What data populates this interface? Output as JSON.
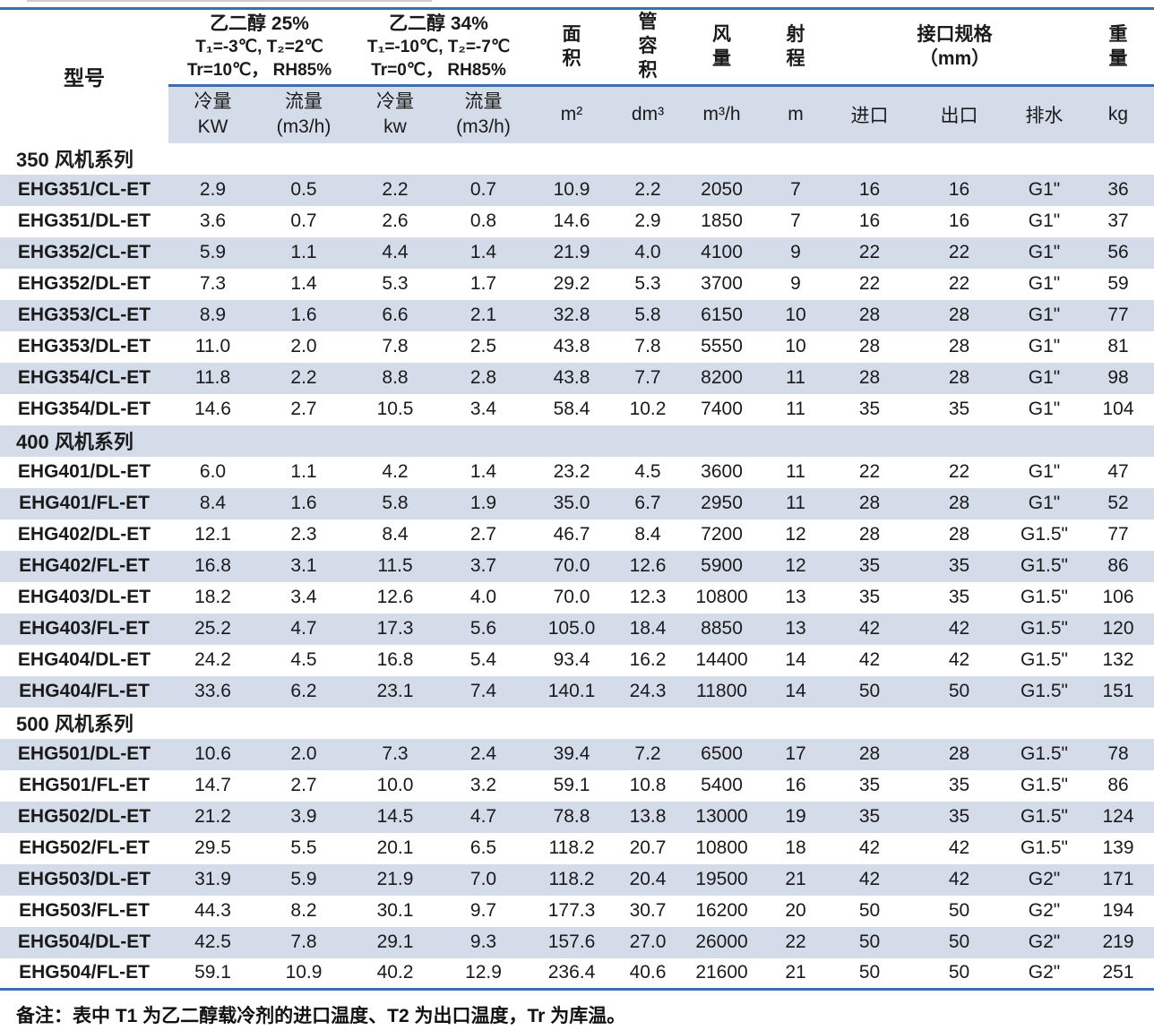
{
  "colors": {
    "accent": "#3e6cb0",
    "stripe": "#d4dcea"
  },
  "table": {
    "header": {
      "model_label": "型号",
      "group1": {
        "title": "乙二醇 25%",
        "line2": "T₁=-3℃, T₂=2℃",
        "line3": "Tr=10℃， RH85%"
      },
      "group2": {
        "title": "乙二醇 34%",
        "line2": "T₁=-10℃, T₂=-7℃",
        "line3": "Tr=0℃， RH85%"
      },
      "area": "面积",
      "tube_volume": "管容积",
      "air_flow": "风量",
      "throw": "射程",
      "connection": {
        "line1": "接口规格",
        "line2": "（mm）"
      },
      "weight": "重量",
      "units": {
        "cooling1": {
          "line1": "冷量",
          "line2": "KW"
        },
        "flow1": {
          "line1": "流量",
          "line2": "(m3/h)"
        },
        "cooling2": {
          "line1": "冷量",
          "line2": "kw"
        },
        "flow2": {
          "line1": "流量",
          "line2": "(m3/h)"
        },
        "area": "m²",
        "tube_volume": "dm³",
        "air_flow": "m³/h",
        "throw": "m",
        "inlet": "进口",
        "outlet": "出口",
        "drain": "排水",
        "weight": "kg"
      }
    },
    "rows": [
      {
        "type": "section",
        "label": "350 风机系列"
      },
      {
        "type": "data",
        "model": "EHG351/CL-ET",
        "values": [
          "2.9",
          "0.5",
          "2.2",
          "0.7",
          "10.9",
          "2.2",
          "2050",
          "7",
          "16",
          "16",
          "G1\"",
          "36"
        ]
      },
      {
        "type": "data",
        "model": "EHG351/DL-ET",
        "values": [
          "3.6",
          "0.7",
          "2.6",
          "0.8",
          "14.6",
          "2.9",
          "1850",
          "7",
          "16",
          "16",
          "G1\"",
          "37"
        ]
      },
      {
        "type": "data",
        "model": "EHG352/CL-ET",
        "values": [
          "5.9",
          "1.1",
          "4.4",
          "1.4",
          "21.9",
          "4.0",
          "4100",
          "9",
          "22",
          "22",
          "G1\"",
          "56"
        ]
      },
      {
        "type": "data",
        "model": "EHG352/DL-ET",
        "values": [
          "7.3",
          "1.4",
          "5.3",
          "1.7",
          "29.2",
          "5.3",
          "3700",
          "9",
          "22",
          "22",
          "G1\"",
          "59"
        ]
      },
      {
        "type": "data",
        "model": "EHG353/CL-ET",
        "values": [
          "8.9",
          "1.6",
          "6.6",
          "2.1",
          "32.8",
          "5.8",
          "6150",
          "10",
          "28",
          "28",
          "G1\"",
          "77"
        ]
      },
      {
        "type": "data",
        "model": "EHG353/DL-ET",
        "values": [
          "11.0",
          "2.0",
          "7.8",
          "2.5",
          "43.8",
          "7.8",
          "5550",
          "10",
          "28",
          "28",
          "G1\"",
          "81"
        ]
      },
      {
        "type": "data",
        "model": "EHG354/CL-ET",
        "values": [
          "11.8",
          "2.2",
          "8.8",
          "2.8",
          "43.8",
          "7.7",
          "8200",
          "11",
          "28",
          "28",
          "G1\"",
          "98"
        ]
      },
      {
        "type": "data",
        "model": "EHG354/DL-ET",
        "values": [
          "14.6",
          "2.7",
          "10.5",
          "3.4",
          "58.4",
          "10.2",
          "7400",
          "11",
          "35",
          "35",
          "G1\"",
          "104"
        ]
      },
      {
        "type": "section",
        "label": "400 风机系列"
      },
      {
        "type": "data",
        "model": "EHG401/DL-ET",
        "values": [
          "6.0",
          "1.1",
          "4.2",
          "1.4",
          "23.2",
          "4.5",
          "3600",
          "11",
          "22",
          "22",
          "G1\"",
          "47"
        ]
      },
      {
        "type": "data",
        "model": "EHG401/FL-ET",
        "values": [
          "8.4",
          "1.6",
          "5.8",
          "1.9",
          "35.0",
          "6.7",
          "2950",
          "11",
          "28",
          "28",
          "G1\"",
          "52"
        ]
      },
      {
        "type": "data",
        "model": "EHG402/DL-ET",
        "values": [
          "12.1",
          "2.3",
          "8.4",
          "2.7",
          "46.7",
          "8.4",
          "7200",
          "12",
          "28",
          "28",
          "G1.5\"",
          "77"
        ]
      },
      {
        "type": "data",
        "model": "EHG402/FL-ET",
        "values": [
          "16.8",
          "3.1",
          "11.5",
          "3.7",
          "70.0",
          "12.6",
          "5900",
          "12",
          "35",
          "35",
          "G1.5\"",
          "86"
        ]
      },
      {
        "type": "data",
        "model": "EHG403/DL-ET",
        "values": [
          "18.2",
          "3.4",
          "12.6",
          "4.0",
          "70.0",
          "12.3",
          "10800",
          "13",
          "35",
          "35",
          "G1.5\"",
          "106"
        ]
      },
      {
        "type": "data",
        "model": "EHG403/FL-ET",
        "values": [
          "25.2",
          "4.7",
          "17.3",
          "5.6",
          "105.0",
          "18.4",
          "8850",
          "13",
          "42",
          "42",
          "G1.5\"",
          "120"
        ]
      },
      {
        "type": "data",
        "model": "EHG404/DL-ET",
        "values": [
          "24.2",
          "4.5",
          "16.8",
          "5.4",
          "93.4",
          "16.2",
          "14400",
          "14",
          "42",
          "42",
          "G1.5\"",
          "132"
        ]
      },
      {
        "type": "data",
        "model": "EHG404/FL-ET",
        "values": [
          "33.6",
          "6.2",
          "23.1",
          "7.4",
          "140.1",
          "24.3",
          "11800",
          "14",
          "50",
          "50",
          "G1.5\"",
          "151"
        ]
      },
      {
        "type": "section",
        "label": "500 风机系列"
      },
      {
        "type": "data",
        "model": "EHG501/DL-ET",
        "values": [
          "10.6",
          "2.0",
          "7.3",
          "2.4",
          "39.4",
          "7.2",
          "6500",
          "17",
          "28",
          "28",
          "G1.5\"",
          "78"
        ]
      },
      {
        "type": "data",
        "model": "EHG501/FL-ET",
        "values": [
          "14.7",
          "2.7",
          "10.0",
          "3.2",
          "59.1",
          "10.8",
          "5400",
          "16",
          "35",
          "35",
          "G1.5\"",
          "86"
        ]
      },
      {
        "type": "data",
        "model": "EHG502/DL-ET",
        "values": [
          "21.2",
          "3.9",
          "14.5",
          "4.7",
          "78.8",
          "13.8",
          "13000",
          "19",
          "35",
          "35",
          "G1.5\"",
          "124"
        ]
      },
      {
        "type": "data",
        "model": "EHG502/FL-ET",
        "values": [
          "29.5",
          "5.5",
          "20.1",
          "6.5",
          "118.2",
          "20.7",
          "10800",
          "18",
          "42",
          "42",
          "G1.5\"",
          "139"
        ]
      },
      {
        "type": "data",
        "model": "EHG503/DL-ET",
        "values": [
          "31.9",
          "5.9",
          "21.9",
          "7.0",
          "118.2",
          "20.4",
          "19500",
          "21",
          "42",
          "42",
          "G2\"",
          "171"
        ]
      },
      {
        "type": "data",
        "model": "EHG503/FL-ET",
        "values": [
          "44.3",
          "8.2",
          "30.1",
          "9.7",
          "177.3",
          "30.7",
          "16200",
          "20",
          "50",
          "50",
          "G2\"",
          "194"
        ]
      },
      {
        "type": "data",
        "model": "EHG504/DL-ET",
        "values": [
          "42.5",
          "7.8",
          "29.1",
          "9.3",
          "157.6",
          "27.0",
          "26000",
          "22",
          "50",
          "50",
          "G2\"",
          "219"
        ]
      },
      {
        "type": "data",
        "model": "EHG504/FL-ET",
        "values": [
          "59.1",
          "10.9",
          "40.2",
          "12.9",
          "236.4",
          "40.6",
          "21600",
          "21",
          "50",
          "50",
          "G2\"",
          "251"
        ]
      }
    ]
  },
  "note": "备注：表中 T1 为乙二醇载冷剂的进口温度、T2 为出口温度，Tr 为库温。"
}
